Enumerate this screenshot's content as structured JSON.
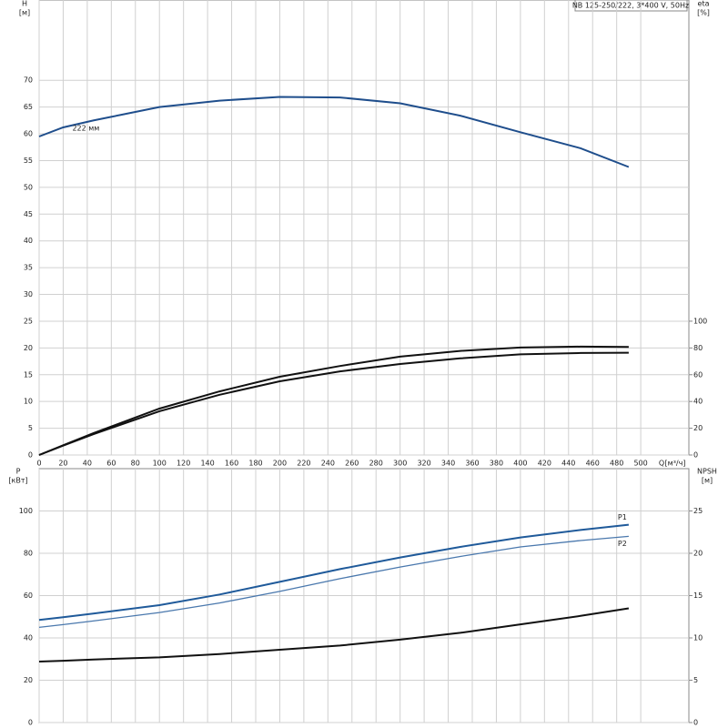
{
  "chart_data": [
    {
      "type": "line",
      "title": "NB 125-250/222, 3*400 V, 50Hz",
      "xlabel": "Q",
      "xunit": "[м³/ч]",
      "ylabel": "H",
      "yunit": "[м]",
      "y2label": "eta",
      "y2unit": "[%]",
      "x": [
        0,
        20,
        45,
        100,
        150,
        200,
        250,
        300,
        350,
        400,
        450,
        490
      ],
      "xlim": [
        0,
        540
      ],
      "xticks": [
        0,
        20,
        40,
        60,
        80,
        100,
        120,
        140,
        160,
        180,
        200,
        220,
        240,
        260,
        280,
        300,
        320,
        340,
        360,
        380,
        400,
        420,
        440,
        460,
        480,
        500
      ],
      "ylim": [
        0,
        85
      ],
      "yticks": [
        0,
        5,
        10,
        15,
        20,
        25,
        30,
        35,
        40,
        45,
        50,
        55,
        60,
        65,
        70
      ],
      "y2lim": [
        0,
        340
      ],
      "y2ticks": [
        0,
        20,
        40,
        60,
        80,
        100
      ],
      "grid": true,
      "series": [
        {
          "name": "222 мм",
          "color": "#1f4e8c",
          "values": [
            59.5,
            61.2,
            62.5,
            65.0,
            66.2,
            66.9,
            66.8,
            65.7,
            63.4,
            60.3,
            57.3,
            53.8
          ]
        },
        {
          "color": "#111111",
          "axis": "y2",
          "values": [
            0,
            7.3,
            16.3,
            34.7,
            47.5,
            58.5,
            66.5,
            73.5,
            77.8,
            80.3,
            81,
            80.8
          ]
        },
        {
          "color": "#111111",
          "axis": "y2",
          "values": [
            0,
            7,
            15.5,
            32.7,
            45,
            55.1,
            62.5,
            68,
            72.2,
            75.2,
            76.2,
            76.4
          ]
        }
      ]
    },
    {
      "type": "line",
      "ylabel": "P",
      "yunit": "[кВт]",
      "y2label": "NPSH",
      "y2unit": "[м]",
      "x": [
        0,
        20,
        45,
        100,
        150,
        200,
        250,
        300,
        350,
        400,
        450,
        490
      ],
      "xlim": [
        0,
        540
      ],
      "ylim": [
        0,
        120
      ],
      "yticks": [
        0,
        20,
        40,
        60,
        80,
        100
      ],
      "y2lim": [
        0,
        30
      ],
      "y2ticks": [
        0,
        5,
        10,
        15,
        20,
        25
      ],
      "grid": true,
      "series": [
        {
          "name": "P1",
          "color": "#1f5a9a",
          "values": [
            48.5,
            49.8,
            51.5,
            55.5,
            60.5,
            66.5,
            72.5,
            78,
            83,
            87.5,
            91,
            93.5
          ]
        },
        {
          "name": "P2",
          "color": "#4a78ad",
          "values": [
            45,
            46.3,
            48,
            52,
            56.5,
            62,
            68,
            73.5,
            78.5,
            83,
            86,
            88
          ]
        },
        {
          "color": "#111111",
          "axis": "y2",
          "values": [
            7.2,
            7.3,
            7.45,
            7.7,
            8.1,
            8.6,
            9.1,
            9.8,
            10.6,
            11.6,
            12.6,
            13.5
          ]
        }
      ]
    }
  ]
}
